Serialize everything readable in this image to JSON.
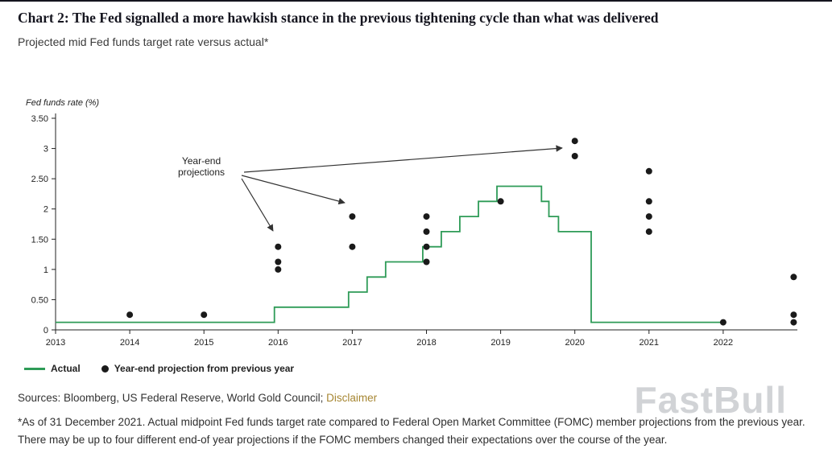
{
  "page": {
    "title": "Chart 2: The Fed signalled a more hawkish stance in the previous tightening cycle than what was delivered",
    "subtitle": "Projected mid Fed funds target rate versus actual*",
    "sources_prefix": "Sources: Bloomberg, US Federal Reserve, World Gold Council; ",
    "disclaimer_link": "Disclaimer",
    "footnote": "*As of 31 December 2021. Actual midpoint Fed funds target rate compared to Federal Open Market Committee (FOMC) member projections from the previous year. There may be up to four different end-of year projections if the FOMC members changed their expectations over the course of the year.",
    "watermark": "FastBull"
  },
  "colors": {
    "accent_link": "#a68632",
    "line_green": "#2e9b57",
    "dot_black": "#1a1a1a",
    "axis": "#222222"
  },
  "chart_data": {
    "type": "line",
    "title": "Projected mid Fed funds target rate versus actual*",
    "xlabel": "",
    "ylabel": "Fed funds rate (%)",
    "xlim": [
      2013,
      2023
    ],
    "ylim": [
      0,
      3.5
    ],
    "grid": false,
    "legend_position": "bottom-left",
    "y_tick_labels": [
      "0",
      "0.50",
      "1",
      "1.50",
      "2",
      "2.50",
      "3",
      "3.50"
    ],
    "y_tick_values": [
      0,
      0.5,
      1,
      1.5,
      2,
      2.5,
      3,
      3.5
    ],
    "x_tick_labels": [
      "2013",
      "2014",
      "2015",
      "2016",
      "2017",
      "2018",
      "2019",
      "2020",
      "2021",
      "2022"
    ],
    "x_tick_values": [
      2013,
      2014,
      2015,
      2016,
      2017,
      2018,
      2019,
      2020,
      2021,
      2022
    ],
    "annotation": {
      "lines": [
        "Year-end",
        "projections"
      ]
    },
    "legend": [
      {
        "label": "Actual",
        "type": "line",
        "color": "#2e9b57"
      },
      {
        "label": "Year-end projection from previous year",
        "type": "dot",
        "color": "#1a1a1a"
      }
    ],
    "series": [
      {
        "name": "Actual",
        "type": "step-line",
        "color": "#2e9b57",
        "points": [
          [
            2013.0,
            0.125
          ],
          [
            2015.95,
            0.125
          ],
          [
            2015.95,
            0.375
          ],
          [
            2016.95,
            0.375
          ],
          [
            2016.95,
            0.625
          ],
          [
            2017.2,
            0.625
          ],
          [
            2017.2,
            0.875
          ],
          [
            2017.45,
            0.875
          ],
          [
            2017.45,
            1.125
          ],
          [
            2017.95,
            1.125
          ],
          [
            2017.95,
            1.375
          ],
          [
            2018.2,
            1.375
          ],
          [
            2018.2,
            1.625
          ],
          [
            2018.45,
            1.625
          ],
          [
            2018.45,
            1.875
          ],
          [
            2018.7,
            1.875
          ],
          [
            2018.7,
            2.125
          ],
          [
            2018.95,
            2.125
          ],
          [
            2018.95,
            2.375
          ],
          [
            2019.55,
            2.375
          ],
          [
            2019.55,
            2.125
          ],
          [
            2019.65,
            2.125
          ],
          [
            2019.65,
            1.875
          ],
          [
            2019.78,
            1.875
          ],
          [
            2019.78,
            1.625
          ],
          [
            2020.22,
            1.625
          ],
          [
            2020.22,
            0.125
          ],
          [
            2022.0,
            0.125
          ]
        ]
      },
      {
        "name": "Year-end projection from previous year",
        "type": "scatter",
        "color": "#1a1a1a",
        "points": [
          [
            2014,
            0.25
          ],
          [
            2015,
            0.25
          ],
          [
            2016,
            1.375
          ],
          [
            2016,
            1.125
          ],
          [
            2016,
            1.0
          ],
          [
            2017,
            1.875
          ],
          [
            2017,
            1.375
          ],
          [
            2018,
            1.875
          ],
          [
            2018,
            1.625
          ],
          [
            2018,
            1.375
          ],
          [
            2018,
            1.125
          ],
          [
            2019,
            2.125
          ],
          [
            2020,
            3.125
          ],
          [
            2020,
            2.875
          ],
          [
            2021,
            2.625
          ],
          [
            2021,
            2.125
          ],
          [
            2021,
            1.875
          ],
          [
            2021,
            1.625
          ],
          [
            2022,
            0.125
          ],
          [
            2022.95,
            0.875
          ],
          [
            2022.95,
            0.25
          ],
          [
            2022.95,
            0.125
          ]
        ]
      }
    ]
  }
}
